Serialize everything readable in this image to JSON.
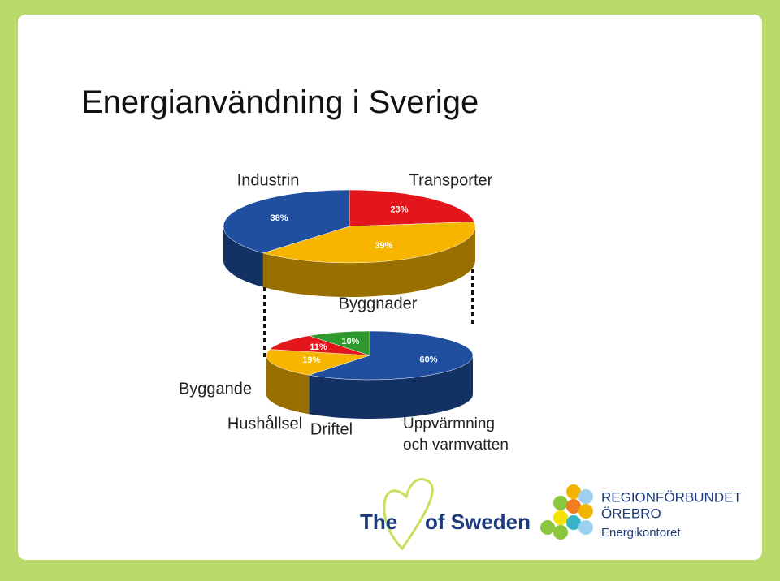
{
  "title": "Energianvändning i Sverige",
  "chart_data": [
    {
      "type": "pie",
      "categories": [
        "Transporter",
        "Byggnader",
        "Industrin"
      ],
      "values": [
        23,
        39,
        38
      ],
      "value_labels": [
        "23%",
        "39%",
        "38%"
      ],
      "colors": [
        "#e3161b",
        "#f7b500",
        "#1f4f9e"
      ]
    },
    {
      "type": "pie",
      "categories": [
        "Uppvärmning och varmvatten",
        "Driftel",
        "Hushållsel",
        "Byggande"
      ],
      "values": [
        60,
        19,
        11,
        10
      ],
      "value_labels": [
        "60%",
        "19%",
        "11%",
        "10%"
      ],
      "colors": [
        "#1f4f9e",
        "#f7b500",
        "#e3161b",
        "#2e9a2e"
      ]
    }
  ],
  "logos": {
    "heart_left": "The",
    "heart_right": "of Sweden",
    "region_line1": "REGIONFÖRBUNDET",
    "region_line2": "ÖREBRO",
    "region_line3": "Energikontoret"
  }
}
